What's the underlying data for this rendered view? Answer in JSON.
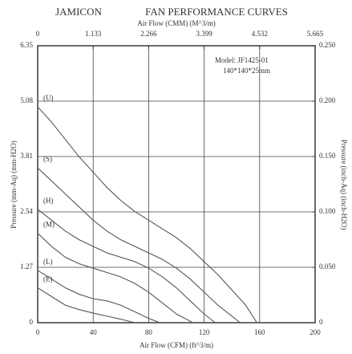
{
  "chart_data": {
    "type": "line",
    "title": "FAN PERFORMANCE CURVES",
    "brand": "JAMICON",
    "xlabel": "Air Flow (CFM) (ft^3/m)",
    "x2label": "Air Flow (CMM) (M^3/m)",
    "ylabel": "Pressure (mm-Aq) (mm-H2O)",
    "y2label": "Pressure (inch-Aq) (inch-H2O)",
    "xlim": [
      0,
      200
    ],
    "xticks": [
      0,
      40,
      80,
      120,
      160,
      200
    ],
    "x2lim": [
      0,
      5.665
    ],
    "x2ticks": [
      0,
      1.133,
      2.266,
      3.399,
      4.532,
      5.665
    ],
    "ylim": [
      0,
      6.35
    ],
    "yticks": [
      0,
      1.27,
      2.54,
      3.81,
      5.08,
      6.35
    ],
    "y2lim": [
      0,
      0.25
    ],
    "y2ticks": [
      0,
      {
        "value": 0.05,
        "label": "0.050"
      },
      {
        "value": 0.1,
        "label": "0.100"
      },
      {
        "value": 0.15,
        "label": "0.150"
      },
      {
        "value": 0.2,
        "label": "0.200"
      },
      {
        "value": 0.25,
        "label": "0.250"
      }
    ],
    "grid": true,
    "annotations": [
      "Model:   JF1425-01",
      "140*140*25mm"
    ],
    "series": [
      {
        "name": "(U)",
        "color": "#555555",
        "x": [
          0,
          10,
          20,
          30,
          40,
          50,
          60,
          70,
          80,
          90,
          100,
          110,
          120,
          130,
          140,
          150,
          158
        ],
        "values": [
          4.95,
          4.6,
          4.2,
          3.8,
          3.45,
          3.1,
          2.8,
          2.55,
          2.35,
          2.15,
          1.95,
          1.7,
          1.4,
          1.1,
          0.75,
          0.4,
          0
        ]
      },
      {
        "name": "(S)",
        "color": "#555555",
        "x": [
          0,
          10,
          20,
          30,
          40,
          50,
          60,
          70,
          80,
          90,
          100,
          110,
          120,
          130,
          140,
          146
        ],
        "values": [
          3.55,
          3.25,
          2.95,
          2.65,
          2.35,
          2.1,
          1.9,
          1.75,
          1.6,
          1.45,
          1.25,
          1.0,
          0.7,
          0.4,
          0.15,
          0
        ]
      },
      {
        "name": "(H)",
        "color": "#555555",
        "x": [
          0,
          10,
          20,
          30,
          40,
          50,
          60,
          70,
          80,
          90,
          100,
          110,
          120,
          128
        ],
        "values": [
          2.6,
          2.35,
          2.1,
          1.9,
          1.75,
          1.6,
          1.5,
          1.4,
          1.25,
          1.05,
          0.8,
          0.5,
          0.2,
          0
        ]
      },
      {
        "name": "(M)",
        "color": "#555555",
        "x": [
          0,
          10,
          20,
          30,
          40,
          50,
          60,
          70,
          80,
          90,
          100,
          112
        ],
        "values": [
          2.05,
          1.75,
          1.5,
          1.35,
          1.25,
          1.15,
          1.05,
          0.9,
          0.7,
          0.45,
          0.2,
          0
        ]
      },
      {
        "name": "(L)",
        "color": "#555555",
        "x": [
          0,
          10,
          20,
          30,
          40,
          50,
          60,
          70,
          80,
          88
        ],
        "values": [
          1.2,
          1.0,
          0.8,
          0.65,
          0.55,
          0.5,
          0.4,
          0.25,
          0.1,
          0
        ]
      },
      {
        "name": "(E)",
        "color": "#555555",
        "x": [
          0,
          10,
          20,
          30,
          40,
          50,
          60,
          70
        ],
        "values": [
          0.8,
          0.6,
          0.4,
          0.3,
          0.22,
          0.15,
          0.08,
          0
        ]
      }
    ]
  }
}
